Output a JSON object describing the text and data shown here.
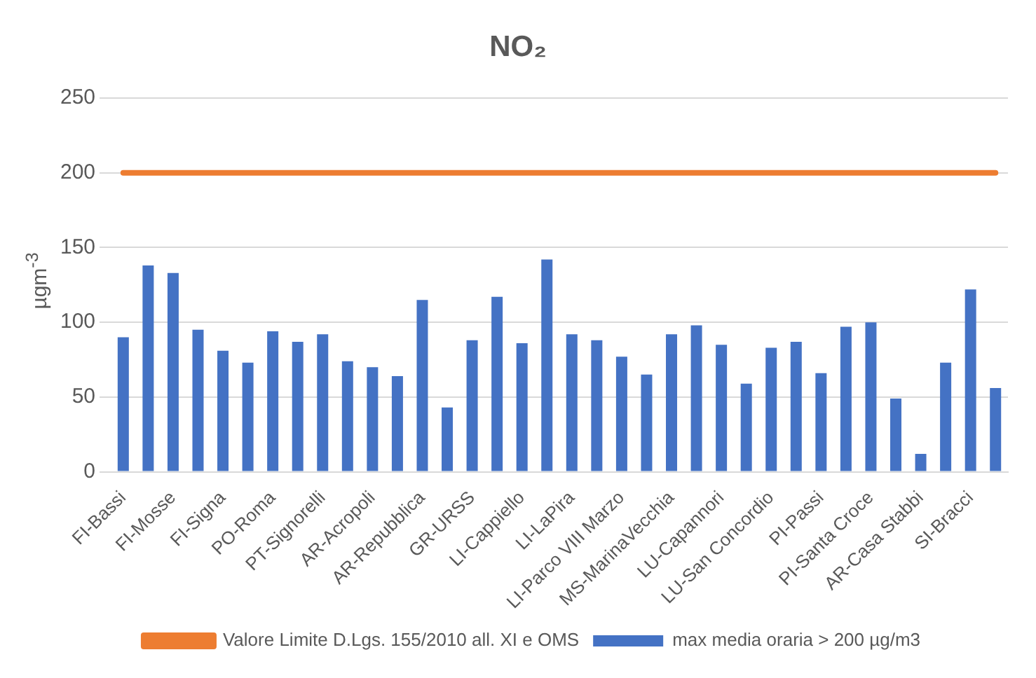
{
  "chart_data": {
    "type": "bar",
    "title": "NO₂",
    "ylabel": "µgm$^{-3}$",
    "categories": [
      "FI-Bassi",
      null,
      "FI-Mosse",
      null,
      "FI-Signa",
      null,
      "PO-Roma",
      null,
      "PT-Signorelli",
      null,
      "AR-Acropoli",
      null,
      "AR-Repubblica",
      null,
      "GR-URSS",
      null,
      "LI-Cappiello",
      null,
      "LI-LaPira",
      null,
      "LI-Parco VIII Marzo",
      null,
      "MS-MarinaVecchia",
      null,
      "LU-Capannori",
      null,
      "LU-San Concordio",
      null,
      "PI-Passi",
      null,
      "PI-Santa Croce",
      null,
      "AR-Casa Stabbi",
      null,
      "SI-Bracci",
      null
    ],
    "series": [
      {
        "name": "max media oraria > 200 µg/m3",
        "color": "#4472c4",
        "values": [
          90,
          138,
          133,
          95,
          81,
          73,
          94,
          87,
          92,
          74,
          70,
          64,
          115,
          43,
          88,
          117,
          86,
          142,
          92,
          88,
          77,
          65,
          92,
          98,
          85,
          59,
          83,
          87,
          66,
          97,
          100,
          49,
          12,
          73,
          122,
          56
        ]
      },
      {
        "name": "Valore Limite D.Lgs. 155/2010 all. XI e OMS",
        "type": "line",
        "color": "#ed7d31",
        "values": [
          200,
          200,
          200,
          200,
          200,
          200,
          200,
          200,
          200,
          200,
          200,
          200,
          200,
          200,
          200,
          200,
          200,
          200,
          200,
          200,
          200,
          200,
          200,
          200,
          200,
          200,
          200,
          200,
          200,
          200,
          200,
          200,
          200,
          200,
          200,
          200
        ]
      }
    ],
    "ylim": [
      0,
      250
    ],
    "yticks": [
      0,
      50,
      100,
      150,
      200,
      250
    ],
    "grid": "y",
    "legend": "bottom",
    "marker": "none"
  }
}
